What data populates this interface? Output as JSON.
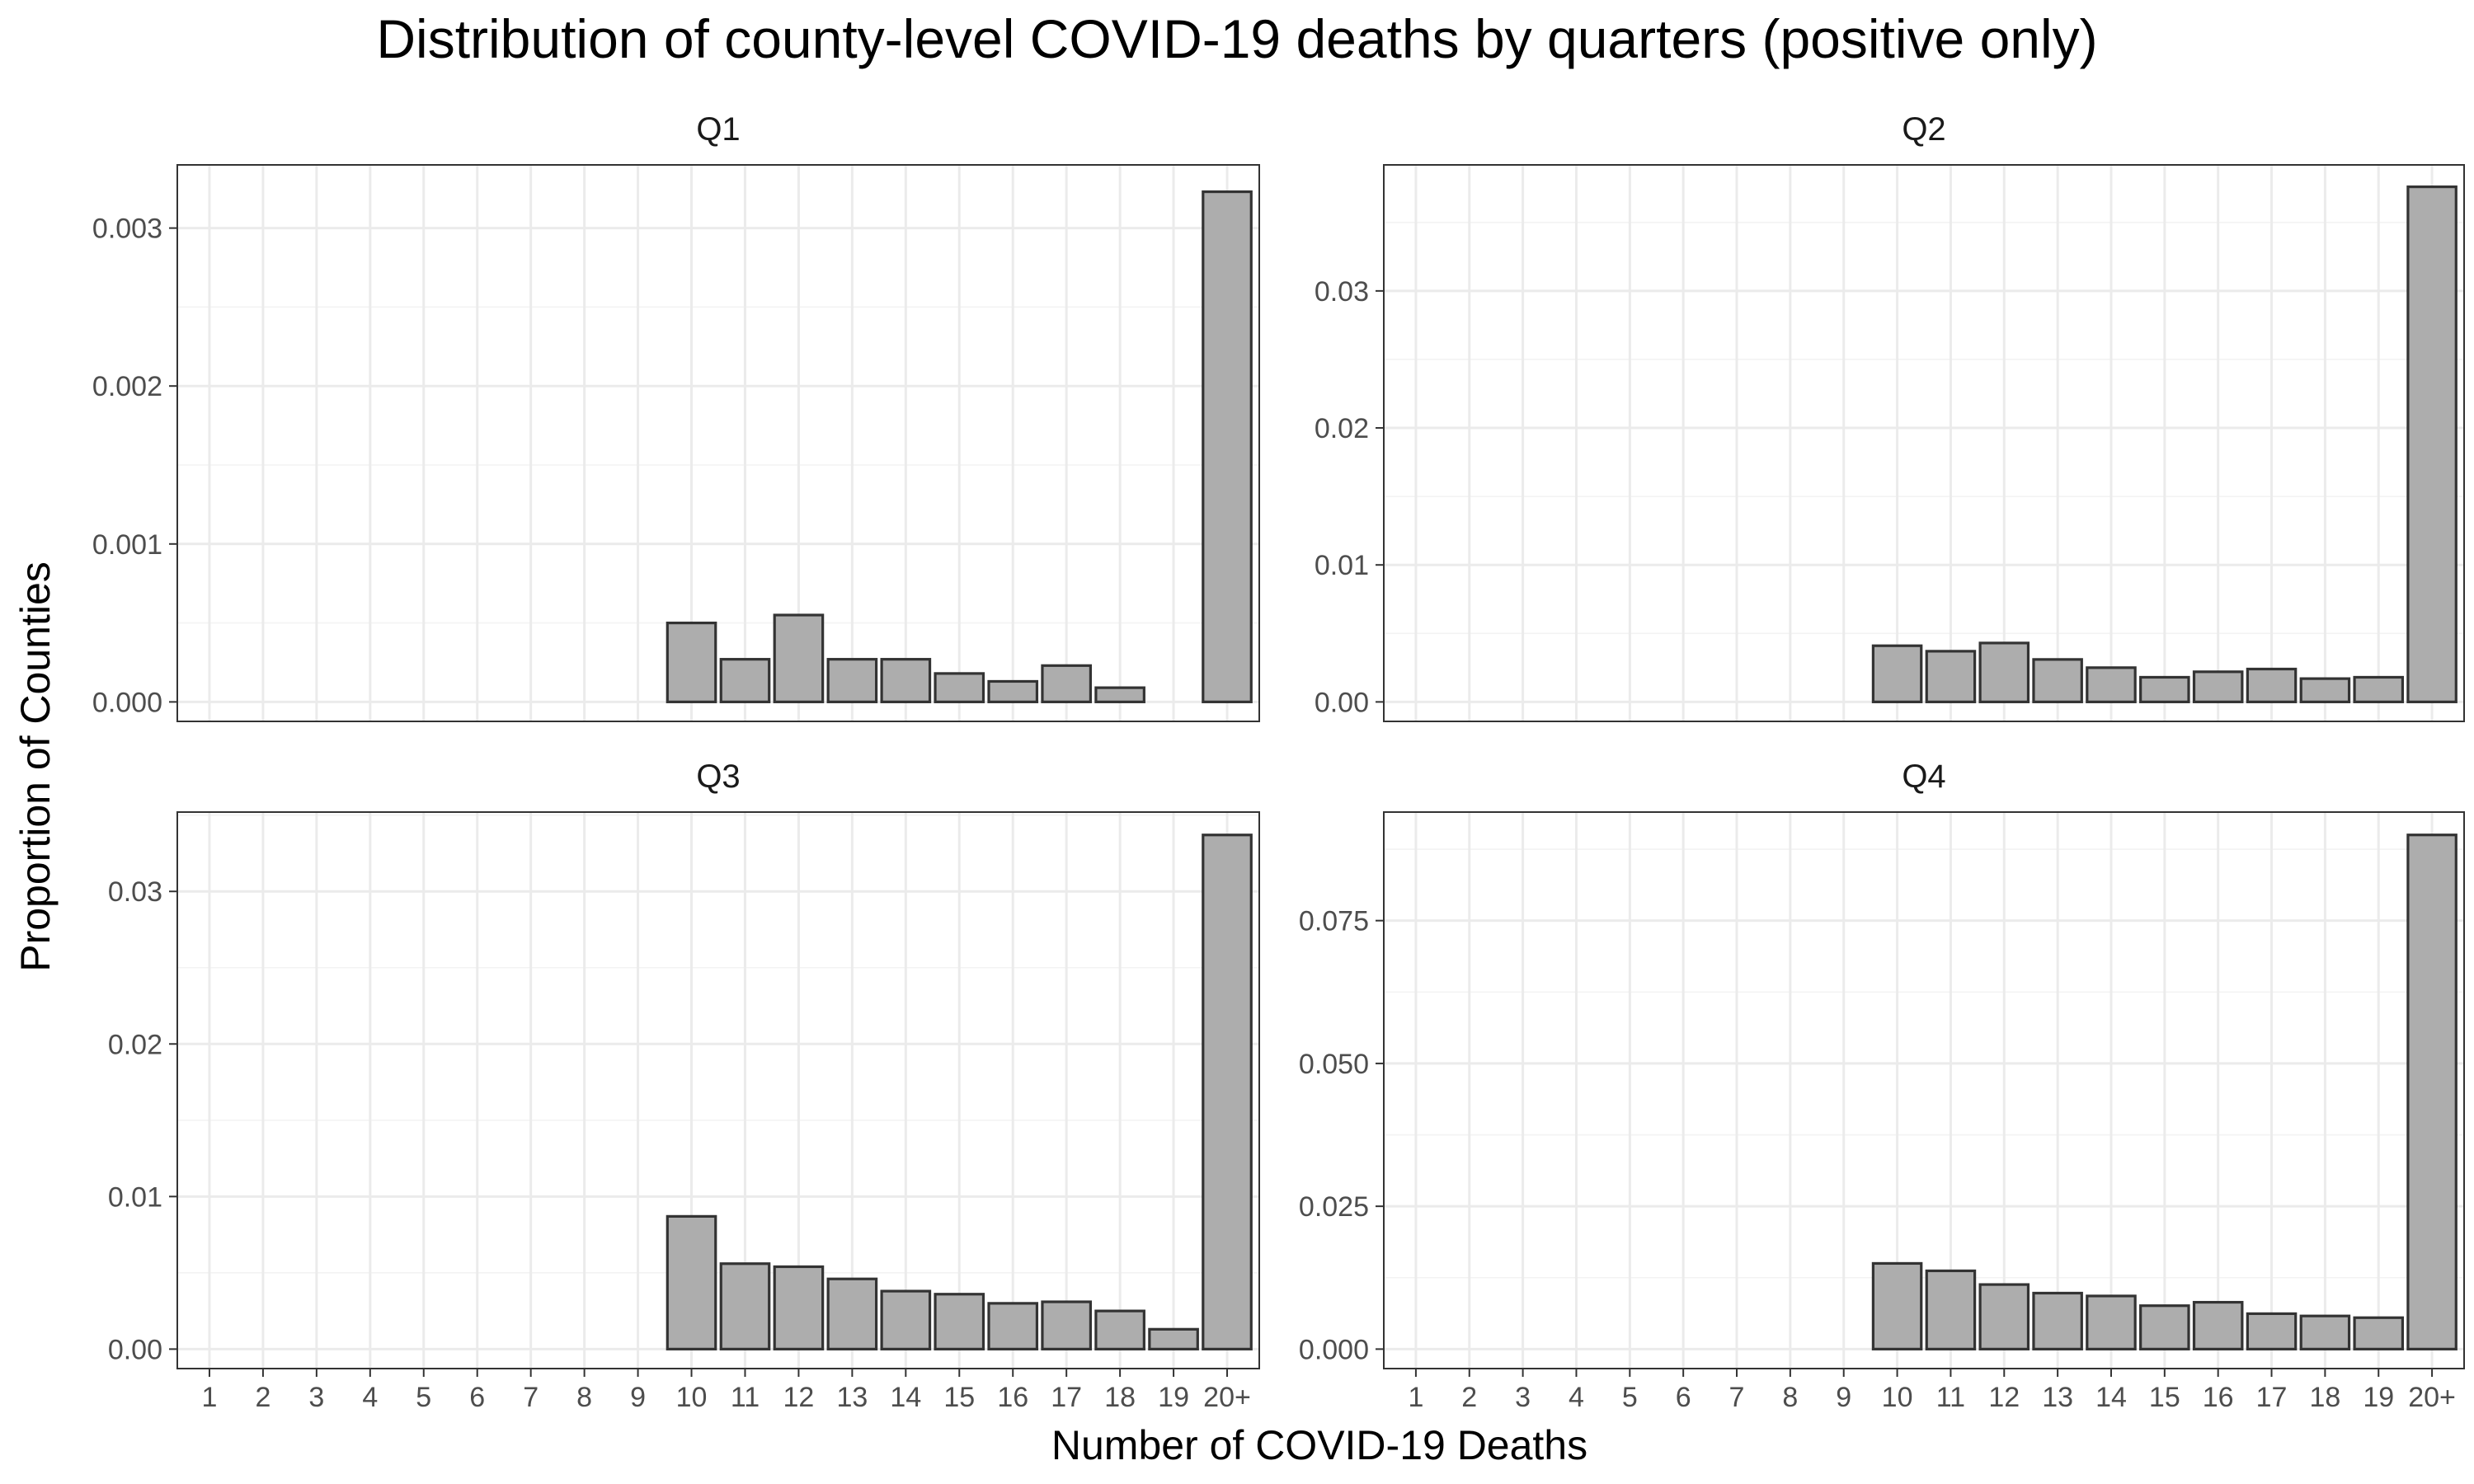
{
  "chart_data": {
    "type": "bar",
    "title": "Distribution of county-level COVID-19 deaths by quarters (positive only)",
    "xlabel": "Number of COVID-19 Deaths",
    "ylabel": "Proportion of Counties",
    "categories": [
      "1",
      "2",
      "3",
      "4",
      "5",
      "6",
      "7",
      "8",
      "9",
      "10",
      "11",
      "12",
      "13",
      "14",
      "15",
      "16",
      "17",
      "18",
      "19",
      "20+"
    ],
    "grid": true,
    "legend": "none",
    "colors": {
      "bar_fill": "#adadad",
      "bar_stroke": "#333333",
      "grid": "#ebebeb"
    },
    "panels": [
      {
        "name": "Q1",
        "ylim": [
          0,
          0.0034
        ],
        "yticks": [
          0,
          0.001,
          0.002,
          0.003
        ],
        "ytick_labels": [
          "0.000",
          "0.001",
          "0.002",
          "0.003"
        ],
        "values": [
          0,
          0,
          0,
          0,
          0,
          0,
          0,
          0,
          0,
          0.0005,
          0.00027,
          0.00055,
          0.00027,
          0.00027,
          0.00018,
          0.00013,
          0.00023,
          9e-05,
          0,
          0.00323
        ]
      },
      {
        "name": "Q2",
        "ylim": [
          0,
          0.0392
        ],
        "yticks": [
          0,
          0.01,
          0.02,
          0.03
        ],
        "ytick_labels": [
          "0.00",
          "0.01",
          "0.02",
          "0.03"
        ],
        "values": [
          0,
          0,
          0,
          0,
          0,
          0,
          0,
          0,
          0,
          0.0041,
          0.0037,
          0.0043,
          0.0031,
          0.0025,
          0.0018,
          0.0022,
          0.0024,
          0.0017,
          0.0018,
          0.0376
        ]
      },
      {
        "name": "Q3",
        "ylim": [
          0,
          0.0352
        ],
        "yticks": [
          0,
          0.01,
          0.02,
          0.03
        ],
        "ytick_labels": [
          "0.00",
          "0.01",
          "0.02",
          "0.03"
        ],
        "values": [
          0,
          0,
          0,
          0,
          0,
          0,
          0,
          0,
          0,
          0.0087,
          0.0056,
          0.0054,
          0.0046,
          0.0038,
          0.0036,
          0.003,
          0.0031,
          0.0025,
          0.0013,
          0.0337
        ]
      },
      {
        "name": "Q4",
        "ylim": [
          0,
          0.094
        ],
        "yticks": [
          0,
          0.025,
          0.05,
          0.075
        ],
        "ytick_labels": [
          "0.000",
          "0.025",
          "0.050",
          "0.075"
        ],
        "values": [
          0,
          0,
          0,
          0,
          0,
          0,
          0,
          0,
          0,
          0.015,
          0.0137,
          0.0113,
          0.0098,
          0.0093,
          0.0076,
          0.0082,
          0.0062,
          0.0058,
          0.0055,
          0.09
        ]
      }
    ]
  }
}
